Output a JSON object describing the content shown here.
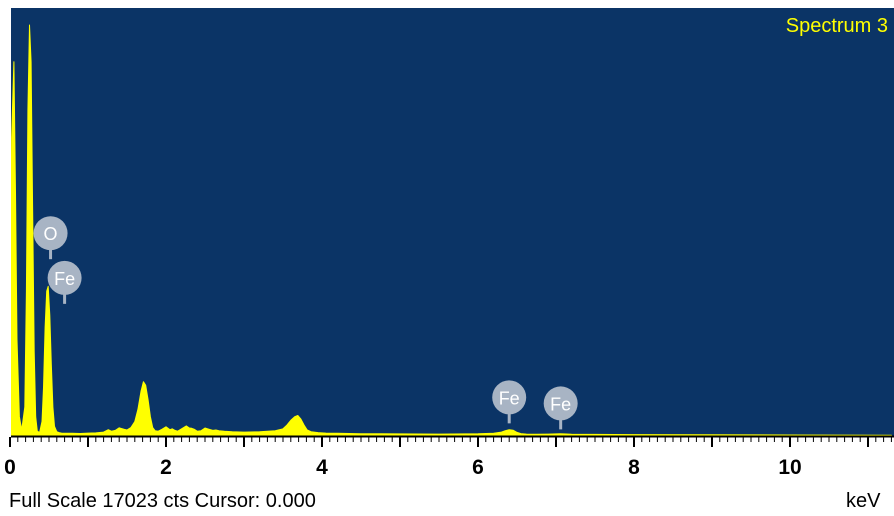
{
  "chart_data": {
    "type": "area",
    "title": "Spectrum 3",
    "x_unit": "keV",
    "xlim": [
      0,
      11.3
    ],
    "ylim": [
      0,
      17023
    ],
    "full_scale_counts": 17023,
    "x_ticks": [
      0,
      2,
      4,
      6,
      8,
      10
    ],
    "x_tick_labels": [
      "0",
      "2",
      "4",
      "6",
      "8",
      "10"
    ],
    "series": [
      {
        "color": "#ffff00",
        "x": [
          0.0,
          0.02,
          0.05,
          0.07,
          0.09,
          0.12,
          0.15,
          0.19,
          0.21,
          0.23,
          0.25,
          0.27,
          0.29,
          0.31,
          0.33,
          0.35,
          0.38,
          0.41,
          0.43,
          0.45,
          0.47,
          0.49,
          0.51,
          0.53,
          0.55,
          0.57,
          0.6,
          0.63,
          0.66,
          0.7,
          0.8,
          0.9,
          1.0,
          1.1,
          1.2,
          1.26,
          1.3,
          1.35,
          1.4,
          1.46,
          1.5,
          1.55,
          1.6,
          1.64,
          1.68,
          1.71,
          1.74,
          1.77,
          1.8,
          1.83,
          1.86,
          1.9,
          1.95,
          2.0,
          2.05,
          2.08,
          2.11,
          2.15,
          2.2,
          2.26,
          2.3,
          2.33,
          2.36,
          2.4,
          2.45,
          2.5,
          2.55,
          2.6,
          2.64,
          2.68,
          2.75,
          2.85,
          3.0,
          3.2,
          3.4,
          3.5,
          3.55,
          3.6,
          3.65,
          3.69,
          3.73,
          3.77,
          3.81,
          3.86,
          3.95,
          4.05,
          4.2,
          4.5,
          5.0,
          5.5,
          6.0,
          6.2,
          6.3,
          6.35,
          6.4,
          6.45,
          6.5,
          6.55,
          6.62,
          6.75,
          6.9,
          7.0,
          7.05,
          7.1,
          7.2,
          7.5,
          8.0,
          9.0,
          10.0,
          11.3
        ],
        "y": [
          0,
          12350,
          15500,
          10100,
          4000,
          800,
          250,
          1200,
          6000,
          13500,
          17023,
          15500,
          9500,
          3500,
          800,
          200,
          150,
          600,
          2000,
          4500,
          6000,
          6200,
          5000,
          3000,
          1200,
          400,
          180,
          140,
          120,
          110,
          110,
          105,
          120,
          130,
          160,
          260,
          200,
          230,
          340,
          280,
          250,
          350,
          600,
          1100,
          1850,
          2250,
          2100,
          1500,
          800,
          350,
          220,
          200,
          280,
          380,
          260,
          300,
          240,
          200,
          300,
          420,
          330,
          320,
          280,
          200,
          220,
          330,
          280,
          230,
          250,
          220,
          200,
          180,
          160,
          180,
          220,
          300,
          450,
          650,
          800,
          850,
          700,
          450,
          250,
          180,
          140,
          120,
          110,
          95,
          85,
          80,
          90,
          110,
          160,
          220,
          260,
          240,
          150,
          100,
          80,
          75,
          80,
          85,
          90,
          85,
          75,
          65,
          60,
          50,
          40,
          30
        ]
      }
    ],
    "markers": [
      {
        "label": "O",
        "energy": 0.52,
        "height": 8400
      },
      {
        "label": "Fe",
        "energy": 0.7,
        "height": 6550
      },
      {
        "label": "Fe",
        "energy": 6.4,
        "height": 1600
      },
      {
        "label": "Fe",
        "energy": 7.06,
        "height": 1350
      }
    ]
  },
  "footer": {
    "status": "Full Scale 17023 cts Cursor: 0.000",
    "unit": "keV"
  },
  "colors": {
    "background": "#0b3466",
    "spectrum": "#ffff00",
    "marker": "#a8b4c4",
    "frame": "#ffffff"
  }
}
